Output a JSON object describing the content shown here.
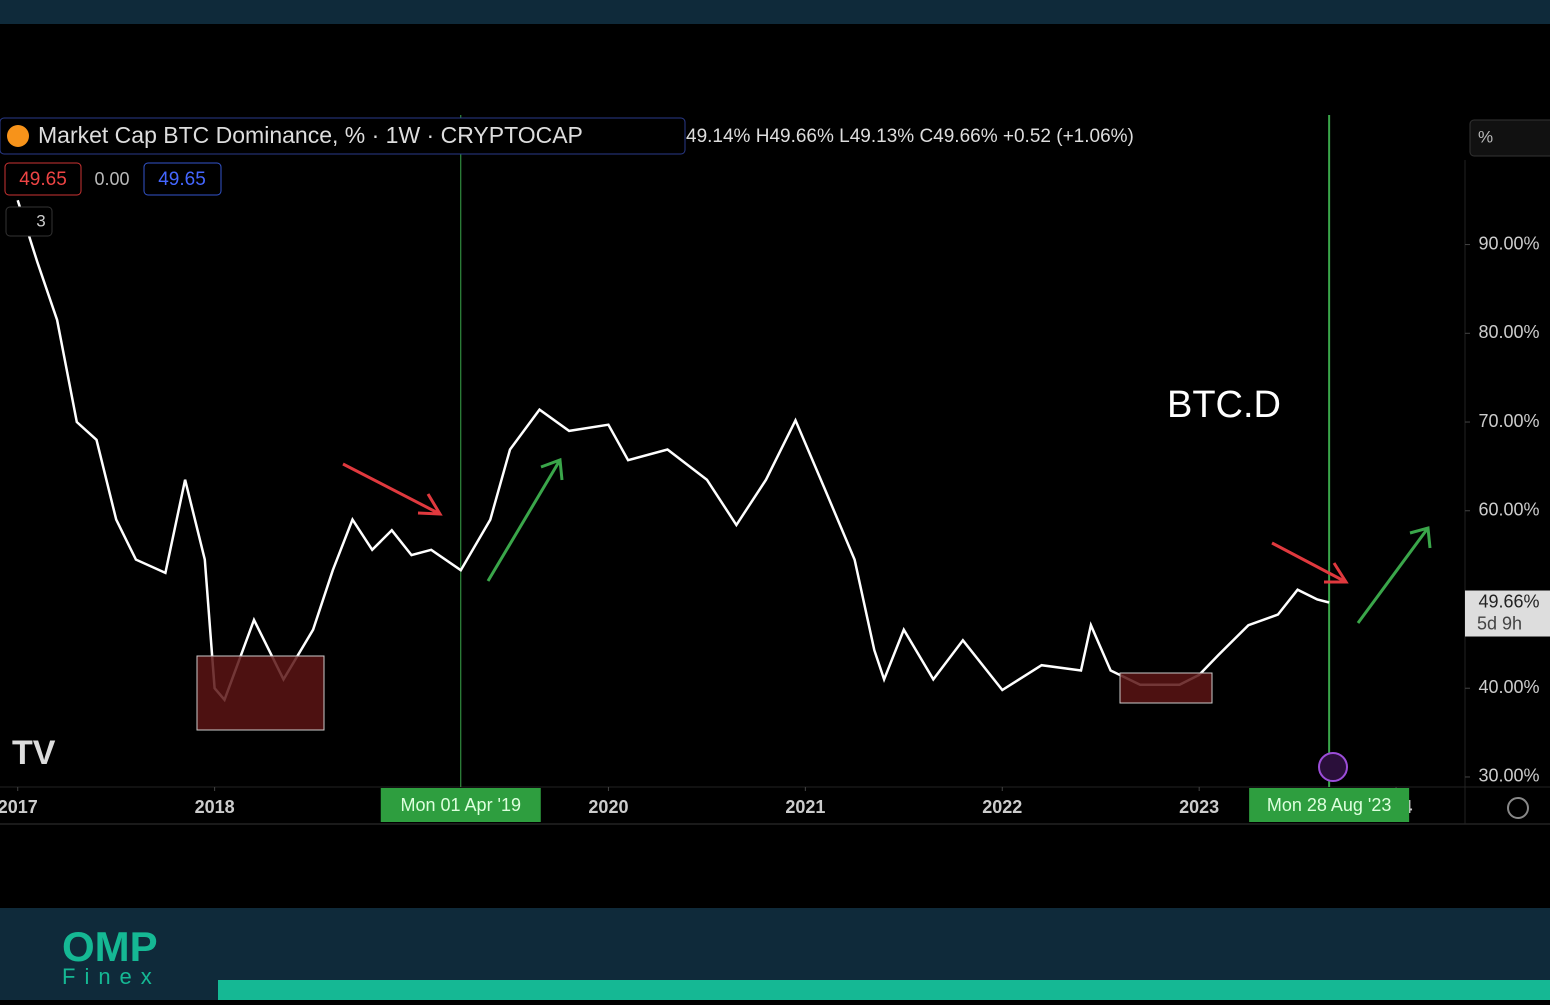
{
  "header": {
    "symbol_title": "Market Cap BTC Dominance, % · 1W · CRYPTOCAP",
    "ohlc": "49.14%  H49.66%  L49.13%  C49.66%  +0.52 (+1.06%)",
    "bid": "49.65",
    "spread": "0.00",
    "ask": "49.65",
    "indicator_count": "3",
    "scale_mode": "%",
    "last_price": "49.66%",
    "countdown": "5d 9h"
  },
  "brand": {
    "name": "OMP",
    "sub": "Finex"
  },
  "chart_data": {
    "type": "line",
    "annotation": "BTC.D",
    "color": "#ffffff",
    "x": [
      2017.0,
      2017.1,
      2017.2,
      2017.3,
      2017.4,
      2017.5,
      2017.6,
      2017.75,
      2017.85,
      2017.95,
      2018.0,
      2018.05,
      2018.2,
      2018.35,
      2018.5,
      2018.6,
      2018.7,
      2018.8,
      2018.9,
      2019.0,
      2019.1,
      2019.25,
      2019.4,
      2019.5,
      2019.65,
      2019.8,
      2020.0,
      2020.1,
      2020.3,
      2020.5,
      2020.65,
      2020.8,
      2020.95,
      2021.1,
      2021.25,
      2021.35,
      2021.4,
      2021.5,
      2021.65,
      2021.8,
      2022.0,
      2022.2,
      2022.4,
      2022.45,
      2022.55,
      2022.7,
      2022.9,
      2023.0,
      2023.1,
      2023.25,
      2023.4,
      2023.5,
      2023.6,
      2023.66
    ],
    "values": [
      95,
      88,
      81.5,
      70,
      68,
      59,
      54.5,
      53,
      63.5,
      54.5,
      40,
      38.7,
      47.7,
      41,
      46.6,
      53.3,
      59,
      55.6,
      57.8,
      55,
      55.6,
      53.3,
      59,
      66.9,
      71.4,
      69,
      69.7,
      65.7,
      66.9,
      63.5,
      58.4,
      63.5,
      70.2,
      62.4,
      54.5,
      44.3,
      41,
      46.6,
      41,
      45.4,
      39.8,
      42.6,
      42,
      47.1,
      42,
      40.4,
      40.4,
      41.5,
      43.8,
      47.1,
      48.3,
      51.1,
      50,
      49.66
    ],
    "xlim": [
      2016.91,
      2024.35
    ],
    "ylim": [
      28.87,
      104.6
    ],
    "xticks": [
      2017,
      2018,
      2020,
      2021,
      2022,
      2023,
      {
        "value": 2024,
        "label": "4"
      }
    ],
    "yticks": [
      {
        "value": 30,
        "label": "30.00%"
      },
      {
        "value": 40,
        "label": "40.00%"
      },
      {
        "value": 60,
        "label": "60.00%"
      },
      {
        "value": 70,
        "label": "70.00%"
      },
      {
        "value": 80,
        "label": "80.00%"
      },
      {
        "value": 90,
        "label": "90.00%"
      }
    ],
    "crosshairs": [
      {
        "value": 2019.25,
        "label": "Mon 01 Apr '19"
      },
      {
        "value": 2023.66,
        "label": "Mon 28 Aug '23"
      }
    ]
  }
}
